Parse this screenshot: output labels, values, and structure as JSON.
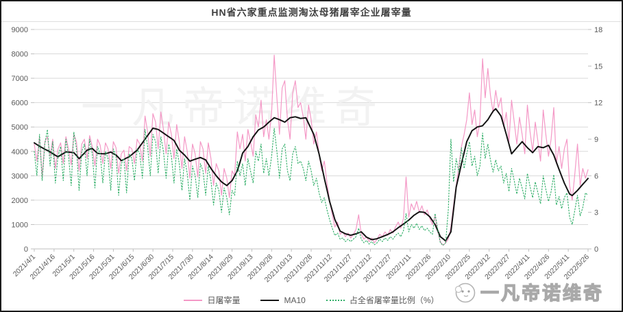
{
  "title": "HN省六家重点监测淘汰母猪屠宰企业屠宰量",
  "watermark": "一凡帝诺维奇",
  "brand": {
    "text": "一凡帝诺维奇",
    "icon": "chick-face-icon"
  },
  "colors": {
    "daily_line": "#f498c6",
    "ma10_line": "#141414",
    "ratio_line": "#2fae67",
    "grid": "#d9d9d9",
    "axis_line": "#bfbfbf",
    "axis_text": "#595959",
    "watermark": "#f2f2f2"
  },
  "chart_data": {
    "type": "line",
    "title": "HN省六家重点监测淘汰母猪屠宰企业屠宰量",
    "xlabel": "",
    "ylabel_left": "",
    "ylabel_right": "",
    "grid": true,
    "legend_position": "bottom",
    "x_start": "2021/4/1",
    "x_end": "2022/5/26",
    "sample_interval_days": 2,
    "x_tick_labels": [
      "2021/4/1",
      "2021/4/16",
      "2021/5/1",
      "2021/5/16",
      "2021/5/31",
      "2021/6/15",
      "2021/6/30",
      "2021/7/15",
      "2021/7/30",
      "2021/8/14",
      "2021/8/29",
      "2021/9/13",
      "2021/9/28",
      "2021/10/13",
      "2021/10/28",
      "2021/11/12",
      "2021/11/27",
      "2021/12/12",
      "2021/12/27",
      "2022/1/11",
      "2022/1/26",
      "2022/2/10",
      "2022/2/25",
      "2022/3/12",
      "2022/3/27",
      "2022/4/11",
      "2022/4/26",
      "2022/5/11",
      "2022/5/26"
    ],
    "left_axis": {
      "min": 0,
      "max": 9000,
      "step": 1000,
      "ticks": [
        0,
        1000,
        2000,
        3000,
        4000,
        5000,
        6000,
        7000,
        8000,
        9000
      ]
    },
    "right_axis": {
      "min": 0,
      "max": 18,
      "step": 3,
      "ticks": [
        0,
        3,
        6,
        9,
        12,
        15,
        18
      ]
    },
    "series": [
      {
        "name": "日屠宰量",
        "axis": "left",
        "color": "#f498c6",
        "style": "solid",
        "width": 1.2,
        "values": [
          4300,
          3600,
          4600,
          2950,
          4400,
          4600,
          3800,
          4500,
          3300,
          4100,
          4350,
          3500,
          4600,
          4100,
          3450,
          4700,
          4400,
          3200,
          4300,
          4500,
          3700,
          4650,
          4200,
          3400,
          4500,
          4250,
          3500,
          4350,
          4100,
          3300,
          4400,
          4150,
          3100,
          3900,
          4050,
          3200,
          4200,
          4100,
          3500,
          4500,
          4300,
          3600,
          5450,
          4800,
          3800,
          5550,
          5200,
          4100,
          5620,
          4900,
          3900,
          5200,
          4700,
          3700,
          5100,
          4400,
          3300,
          4600,
          4000,
          2900,
          4300,
          3900,
          2950,
          4400,
          4100,
          3100,
          4350,
          3700,
          2600,
          3500,
          3200,
          2200,
          3300,
          2900,
          2100,
          3200,
          3000,
          4800,
          4100,
          4700,
          3600,
          4900,
          4400,
          3800,
          5500,
          5000,
          6100,
          4600,
          5300,
          4500,
          5600,
          7950,
          6200,
          4700,
          6600,
          6900,
          5300,
          4500,
          6400,
          6900,
          5800,
          6000,
          5400,
          4500,
          5900,
          5300,
          4300,
          4800,
          3900,
          3200,
          3600,
          2700,
          2000,
          1400,
          900,
          1100,
          600,
          700,
          500,
          650,
          450,
          600,
          800,
          1400,
          600,
          400,
          500,
          300,
          450,
          250,
          400,
          600,
          500,
          700,
          550,
          800,
          650,
          900,
          1100,
          850,
          1250,
          2950,
          1300,
          1850,
          1600,
          1950,
          1500,
          1770,
          1400,
          1600,
          1250,
          1000,
          1350,
          700,
          300,
          150,
          250,
          400,
          900,
          1800,
          2600,
          3400,
          4200,
          4700,
          5300,
          6400,
          5100,
          5700,
          4600,
          5200,
          7800,
          6200,
          7400,
          6300,
          5600,
          6500,
          5800,
          6200,
          5000,
          5600,
          4400,
          6100,
          5200,
          4300,
          5400,
          4700,
          3900,
          5900,
          4800,
          4000,
          5200,
          4400,
          3600,
          5700,
          4700,
          3800,
          4500,
          5800,
          3500,
          4200,
          3300,
          4100,
          4500,
          2600,
          2000,
          3100,
          4300,
          2600,
          3300,
          2900,
          3250
        ]
      },
      {
        "name": "MA10",
        "axis": "left",
        "color": "#141414",
        "style": "solid",
        "width": 2,
        "values": [
          4350,
          4280,
          4210,
          4150,
          4090,
          4040,
          3980,
          3910,
          3840,
          3780,
          3850,
          3910,
          3980,
          3970,
          3960,
          3950,
          3830,
          3700,
          3820,
          3930,
          4050,
          4090,
          4120,
          4020,
          3920,
          3910,
          3905,
          3900,
          3935,
          3970,
          3910,
          3850,
          3740,
          3620,
          3670,
          3730,
          3780,
          3870,
          3960,
          4050,
          4200,
          4350,
          4500,
          4650,
          4800,
          4950,
          4925,
          4900,
          4825,
          4750,
          4675,
          4600,
          4525,
          4450,
          4250,
          4050,
          3950,
          3850,
          3725,
          3600,
          3640,
          3680,
          3715,
          3750,
          3700,
          3650,
          3475,
          3300,
          3150,
          3000,
          2875,
          2750,
          2675,
          2600,
          2700,
          2800,
          3000,
          3200,
          3550,
          3930,
          4065,
          4200,
          4400,
          4600,
          4740,
          4880,
          4940,
          5000,
          5100,
          5200,
          5290,
          5380,
          5340,
          5300,
          5250,
          5200,
          5290,
          5380,
          5400,
          5420,
          5385,
          5350,
          5365,
          5380,
          5150,
          4925,
          4700,
          4300,
          3900,
          3400,
          2900,
          2425,
          1950,
          1575,
          1200,
          965,
          730,
          675,
          620,
          590,
          560,
          590,
          620,
          660,
          700,
          590,
          480,
          430,
          380,
          400,
          420,
          460,
          500,
          545,
          590,
          645,
          700,
          785,
          870,
          945,
          1020,
          1100,
          1180,
          1280,
          1380,
          1450,
          1520,
          1510,
          1500,
          1410,
          1320,
          1160,
          1000,
          750,
          500,
          415,
          330,
          515,
          700,
          1615,
          2530,
          3015,
          3500,
          3950,
          4400,
          4625,
          4850,
          4925,
          5000,
          5025,
          5050,
          5175,
          5300,
          5475,
          5650,
          5750,
          5600,
          5450,
          5075,
          4700,
          4300,
          3900,
          4025,
          4150,
          4275,
          4400,
          4275,
          4150,
          4050,
          3950,
          4075,
          4200,
          4175,
          4150,
          4200,
          4250,
          4050,
          3850,
          3555,
          3260,
          2980,
          2700,
          2475,
          2250,
          2190,
          2295,
          2400,
          2525,
          2650,
          2770,
          2890
        ]
      },
      {
        "name": "占全省屠宰量比例（%）",
        "axis": "right",
        "color": "#2fae67",
        "style": "dotted",
        "width": 1.1,
        "values": [
          8.0,
          6.0,
          9.4,
          5.6,
          8.6,
          9.8,
          6.8,
          8.8,
          5.4,
          7.6,
          8.4,
          5.6,
          9.0,
          7.6,
          5.2,
          9.6,
          8.2,
          4.8,
          8.0,
          8.6,
          6.0,
          9.0,
          7.8,
          5.0,
          8.4,
          7.8,
          5.4,
          8.0,
          7.4,
          4.8,
          8.2,
          7.6,
          4.4,
          7.0,
          7.4,
          4.6,
          7.8,
          7.4,
          5.6,
          8.2,
          7.8,
          5.8,
          9.8,
          8.4,
          6.0,
          9.4,
          8.8,
          6.2,
          9.2,
          8.0,
          5.8,
          8.6,
          7.6,
          5.4,
          8.2,
          7.0,
          4.8,
          7.4,
          6.2,
          4.0,
          6.8,
          6.0,
          4.2,
          7.0,
          6.4,
          4.4,
          6.8,
          5.6,
          3.6,
          5.4,
          4.8,
          3.0,
          5.0,
          4.2,
          2.8,
          4.8,
          4.4,
          7.2,
          6.0,
          7.0,
          5.2,
          7.4,
          6.4,
          5.4,
          8.0,
          7.2,
          8.6,
          6.2,
          7.4,
          6.0,
          7.6,
          9.9,
          8.0,
          5.8,
          8.2,
          8.6,
          6.4,
          5.6,
          7.8,
          8.4,
          7.0,
          7.2,
          6.6,
          5.6,
          7.2,
          6.4,
          5.2,
          5.8,
          4.6,
          3.8,
          4.2,
          3.2,
          2.4,
          1.7,
          1.1,
          1.3,
          0.8,
          0.9,
          0.6,
          0.8,
          0.6,
          0.8,
          1.0,
          1.7,
          0.8,
          0.5,
          0.7,
          0.4,
          0.6,
          0.35,
          0.5,
          0.8,
          0.6,
          0.9,
          0.7,
          1.0,
          0.8,
          1.1,
          1.3,
          1.0,
          1.5,
          2.9,
          1.4,
          2.0,
          1.7,
          2.1,
          1.6,
          1.9,
          1.5,
          1.7,
          1.4,
          1.2,
          2.9,
          1.6,
          0.5,
          0.3,
          0.5,
          3.2,
          9.0,
          5.5,
          7.4,
          6.3,
          8.3,
          6.6,
          7.8,
          8.8,
          6.8,
          7.6,
          6.0,
          6.8,
          9.5,
          7.4,
          8.6,
          7.3,
          6.3,
          7.3,
          6.4,
          6.8,
          5.4,
          6.2,
          4.7,
          6.6,
          5.6,
          4.5,
          5.8,
          5.0,
          4.1,
          6.2,
          5.1,
          4.2,
          5.5,
          4.6,
          3.7,
          6.0,
          4.9,
          3.9,
          4.7,
          6.1,
          3.6,
          4.3,
          3.3,
          4.2,
          4.6,
          2.6,
          2.0,
          3.2,
          4.4,
          2.7,
          3.4,
          4.6,
          4.4
        ]
      }
    ]
  },
  "legend": {
    "daily_label": "日屠宰量",
    "ma10_label": "MA10",
    "ratio_label": "占全省屠宰量比例（%）"
  }
}
